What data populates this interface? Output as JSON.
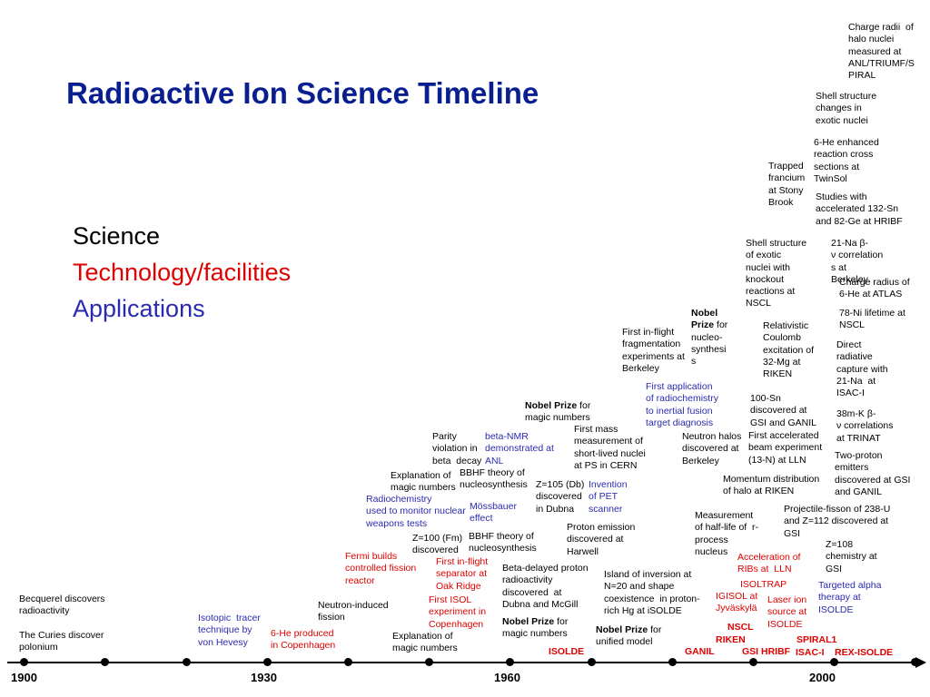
{
  "title": "Radioactive Ion Science Timeline",
  "legend": {
    "science": "Science",
    "technology": "Technology/facilities",
    "applications": "Applications"
  },
  "colors": {
    "title": "#0a1f8f",
    "science": "#000000",
    "technology": "#e00000",
    "applications": "#2a2ab0"
  },
  "axis": {
    "years": [
      "1900",
      "1930",
      "1960",
      "2000"
    ]
  },
  "notes": {
    "becquerel": "Becquerel discovers\nradioactivity",
    "curies": "The Curies discover\npolonium",
    "isotopic_tracer": "Isotopic  tracer\ntechnique by\nvon Hevesy",
    "he6_copenhagen": "6-He produced\nin Copenhagen",
    "neutron_induced": "Neutron-induced\nfission",
    "fermi": "Fermi builds\ncontrolled fission\nreactor",
    "isol_oak": "First in-flight\nseparator at\nOak Ridge",
    "isol_copenhagen": "First ISOL\nexperiment in\nCopenhagen",
    "magic1": "Explanation of\nmagic numbers",
    "radiochem_weapons": "Radiochemistry\nused to monitor nuclear\nweapons tests",
    "z100": "Z=100 (Fm)\ndiscovered",
    "magic2": "Explanation of\nmagic numbers",
    "parity": "Parity\nviolation in\nbeta  decay",
    "bnmr": "beta-NMR\ndemonstrated at\nANL",
    "bbhf1": "BBHF theory of\nnucleosynthesis",
    "mossbauer": "Mössbauer\neffect",
    "bbhf2": "BBHF theory of\nnucleosynthesis",
    "beta_delayed": "Beta-delayed proton\nradioactivity\ndiscovered  at\nDubna and McGill",
    "nobel_magic2_bold": "Nobel Prize",
    "nobel_magic2_rest": " for\nmagic numbers",
    "isolde": "ISOLDE",
    "nobel_magic_bold": "Nobel Prize",
    "nobel_magic_rest": " for\nmagic numbers",
    "first_mass": "First mass\nmeasurement of\nshort-lived nuclei\nat PS in CERN",
    "z105": "Z=105 (Db)\ndiscovered\nin Dubna",
    "pet": "Invention\nof PET\nscanner",
    "proton_emission": "Proton emission\ndiscovered at\nHarwell",
    "island": "Island of inversion at\nN=20 and shape\ncoexistence  in proton-\nrich Hg at iSOLDE",
    "nobel_unified_bold": "Nobel Prize",
    "nobel_unified_rest": " for\nunified model",
    "first_inflight_frag": "First in-flight\nfragmentation\nexperiments at\nBerkeley",
    "radiochem_fusion": "First application\nof radiochemistry\nto inertial fusion\ntarget diagnosis",
    "nobel_nucleo_bold": "Nobel\nPrize",
    "nobel_nucleo_rest": " for\nnucleo-\nsynthesi\ns",
    "neutron_halos": "Neutron halos\ndiscovered at\nBerkeley",
    "sn100": "100-Sn\ndiscovered at\nGSI and GANIL",
    "first_accel_beam": "First accelerated\nbeam experiment\n(13-N) at LLN",
    "momentum": "Momentum distribution\nof halo at RIKEN",
    "halflife": "Measurement\nof half-life of  r-\nprocess\nnucleus",
    "projectile": "Projectile-fisson of 238-U\nand Z=112 discovered at\nGSI",
    "accel_ribs": "Acceleration of\nRIBs at  LLN",
    "isoltrap": "ISOLTRAP",
    "igisol": "IGISOL at\nJyväskylä",
    "laser_ion": "Laser ion\nsource at\nISOLDE",
    "nscl": "NSCL",
    "riken": "RIKEN",
    "ganil": "GANIL",
    "gsi": "GSI",
    "hribf": "HRIBF",
    "spiral1": "SPIRAL1",
    "isaci": "ISAC-I",
    "rexisolde": "REX-ISOLDE",
    "z108": "Z=108\nchemistry at\nGSI",
    "alpha_therapy": "Targeted alpha\ntherapy at\nISOLDE",
    "relativistic": "Relativistic\nCoulomb\nexcitation of\n32-Mg at\nRIKEN",
    "shell_knockout": "Shell structure\nof exotic\nnuclei with\nknockout\nreactions at\nNSCL",
    "na21": "21-Na β-\nν correlation\ns at\nBerkeley",
    "charge_he6": "Charge radius of\n6-He at ATLAS",
    "ni78": "78-Ni lifetime at\nNSCL",
    "direct_radiative": "Direct\nradiative\ncapture with\n21-Na  at\nISAC-I",
    "k38m": "38m-K β-\nν correlations\nat TRINAT",
    "two_proton": "Two-proton\nemitters\ndiscovered at GSI\nand GANIL",
    "trapped_francium": "Trapped\nfrancium\nat Stony\nBrook",
    "studies_sn": "Studies with\naccelerated 132-Sn\nand 82-Ge at HRIBF",
    "he6_reaction": "6-He enhanced\nreaction cross\nsections at\nTwinSol",
    "shell_changes": "Shell structure\nchanges in\nexotic nuclei",
    "charge_radii": "Charge radii  of\nhalo nuclei\nmeasured at\nANL/TRIUMF/S\nPIRAL"
  }
}
